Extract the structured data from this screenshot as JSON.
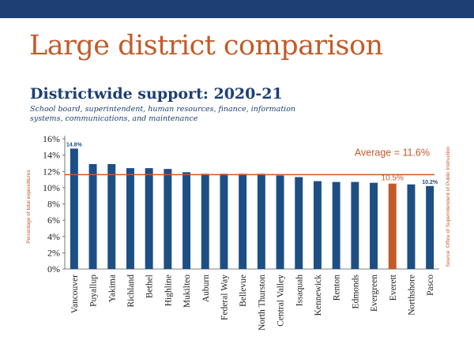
{
  "slide_title": "Large district comparison",
  "colors": {
    "bar": "#1d4f85",
    "highlight": "#c45a29",
    "topbar": "#1d3f73"
  },
  "chart_data": {
    "type": "bar",
    "title": "Districtwide support:  2020-21",
    "subtitle": "School board, superintendent, human resources, finance, information systems, communications, and maintenance",
    "ylabel": "Percentage of total expenditures",
    "source": "Source: Office of Superintendent of Public Instruction",
    "ylim": [
      0,
      16
    ],
    "yticks": [
      "0%",
      "2%",
      "4%",
      "6%",
      "8%",
      "10%",
      "12%",
      "14%",
      "16%"
    ],
    "categories": [
      "Vancouver",
      "Puyallup",
      "Yakima",
      "Richland",
      "Bethel",
      "Highline",
      "Mukilteo",
      "Auburn",
      "Federal Way",
      "Bellevue",
      "North Thurston",
      "Central Valley",
      "Issaquah",
      "Kennewick",
      "Renton",
      "Edmonds",
      "Evergreen",
      "Everett",
      "Northshore",
      "Pasco"
    ],
    "values": [
      14.8,
      12.9,
      12.9,
      12.4,
      12.4,
      12.3,
      11.9,
      11.7,
      11.7,
      11.7,
      11.7,
      11.5,
      11.3,
      10.8,
      10.7,
      10.7,
      10.6,
      10.5,
      10.4,
      10.2
    ],
    "highlight": "Everett",
    "average": 11.6,
    "average_label": "Average = 11.6%",
    "data_labels": [
      {
        "category": "Vancouver",
        "text": "14.8%"
      },
      {
        "category": "Everett",
        "text": "10.5%"
      },
      {
        "category": "Pasco",
        "text": "10.2%"
      }
    ]
  }
}
